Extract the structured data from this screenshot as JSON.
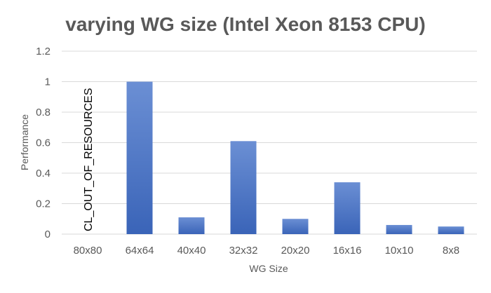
{
  "chart_data": {
    "type": "bar",
    "title": "varying WG size (Intel Xeon 8153 CPU)",
    "xlabel": "WG Size",
    "ylabel": "Performance",
    "categories": [
      "80x80",
      "64x64",
      "40x40",
      "32x32",
      "20x20",
      "16x16",
      "10x10",
      "8x8"
    ],
    "values": [
      0,
      1.0,
      0.11,
      0.61,
      0.1,
      0.34,
      0.06,
      0.05
    ],
    "ylim": [
      0,
      1.2
    ],
    "yticks": [
      "0",
      "0.2",
      "0.4",
      "0.6",
      "0.8",
      "1",
      "1.2"
    ],
    "grid": true,
    "legend": "none",
    "bar_color": "#4472c4",
    "bar_color_light": "#6b8fd4",
    "bar_color_dark": "#3a64b8",
    "annotation": {
      "text": "CL_OUT_OF_RESOURCES",
      "category": "80x80"
    }
  }
}
